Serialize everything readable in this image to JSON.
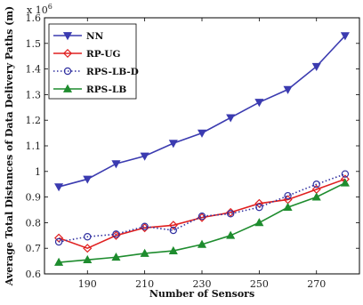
{
  "chart_data": {
    "type": "line",
    "xlabel": "Number of Sensors",
    "ylabel": "Average Total Distances of Data Delivery Paths (m)",
    "y_scale_label": "x 10",
    "y_scale_exp": "6",
    "xlim": [
      175,
      285
    ],
    "ylim": [
      0.6,
      1.6
    ],
    "x_ticks": [
      190,
      210,
      230,
      250,
      270
    ],
    "x_tick_labels": [
      "190",
      "210",
      "230",
      "250",
      "270"
    ],
    "y_ticks": [
      0.6,
      0.7,
      0.8,
      0.9,
      1.0,
      1.1,
      1.2,
      1.3,
      1.4,
      1.5,
      1.6
    ],
    "y_tick_labels": [
      "0.6",
      "0.7",
      "0.8",
      "0.9",
      "1",
      "1.1",
      "1.2",
      "1.3",
      "1.4",
      "1.5",
      "1.6"
    ],
    "grid": false,
    "legend_position": "top-left",
    "x": [
      180,
      190,
      200,
      210,
      220,
      230,
      240,
      250,
      260,
      270,
      280
    ],
    "series": [
      {
        "name": "NN",
        "color": "#3b3bb0",
        "marker": "triangle-down",
        "dash": "solid",
        "values": [
          0.94,
          0.97,
          1.03,
          1.06,
          1.11,
          1.15,
          1.21,
          1.27,
          1.32,
          1.41,
          1.53
        ]
      },
      {
        "name": "RP-UG",
        "color": "#e02020",
        "marker": "diamond",
        "dash": "solid",
        "values": [
          0.74,
          0.7,
          0.75,
          0.78,
          0.79,
          0.82,
          0.84,
          0.875,
          0.89,
          0.93,
          0.97
        ]
      },
      {
        "name": "RPS-LB-D",
        "color": "#3030a0",
        "marker": "circle",
        "dash": "dotted",
        "values": [
          0.725,
          0.745,
          0.755,
          0.785,
          0.77,
          0.825,
          0.835,
          0.86,
          0.905,
          0.95,
          0.99
        ]
      },
      {
        "name": "RPS-LB",
        "color": "#1e8c2e",
        "marker": "triangle-up",
        "dash": "solid",
        "values": [
          0.645,
          0.655,
          0.665,
          0.68,
          0.69,
          0.715,
          0.75,
          0.8,
          0.86,
          0.9,
          0.955
        ]
      }
    ]
  }
}
